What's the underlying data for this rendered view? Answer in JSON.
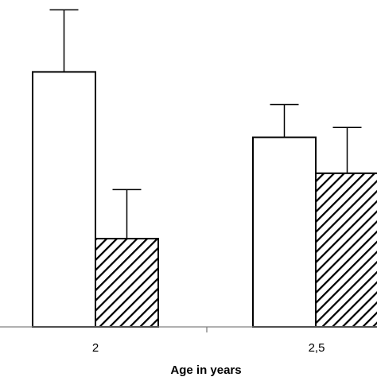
{
  "chart_data": {
    "type": "bar",
    "categories": [
      "2",
      "2,5"
    ],
    "series": [
      {
        "pattern": "white-fill",
        "values": [
          3.9,
          2.9
        ],
        "errors": [
          0.95,
          0.5
        ]
      },
      {
        "pattern": "black-diagonal-hatch",
        "values": [
          1.35,
          2.35
        ],
        "errors": [
          0.75,
          0.7
        ]
      }
    ],
    "xlabel": "Age in years",
    "ylabel": "",
    "ylim": [
      0,
      5.0
    ],
    "grid": false,
    "colors": {
      "axis": "#808080",
      "bar_edge": "#000000",
      "bar_fill": "#ffffff",
      "hatch": "#000000"
    }
  }
}
